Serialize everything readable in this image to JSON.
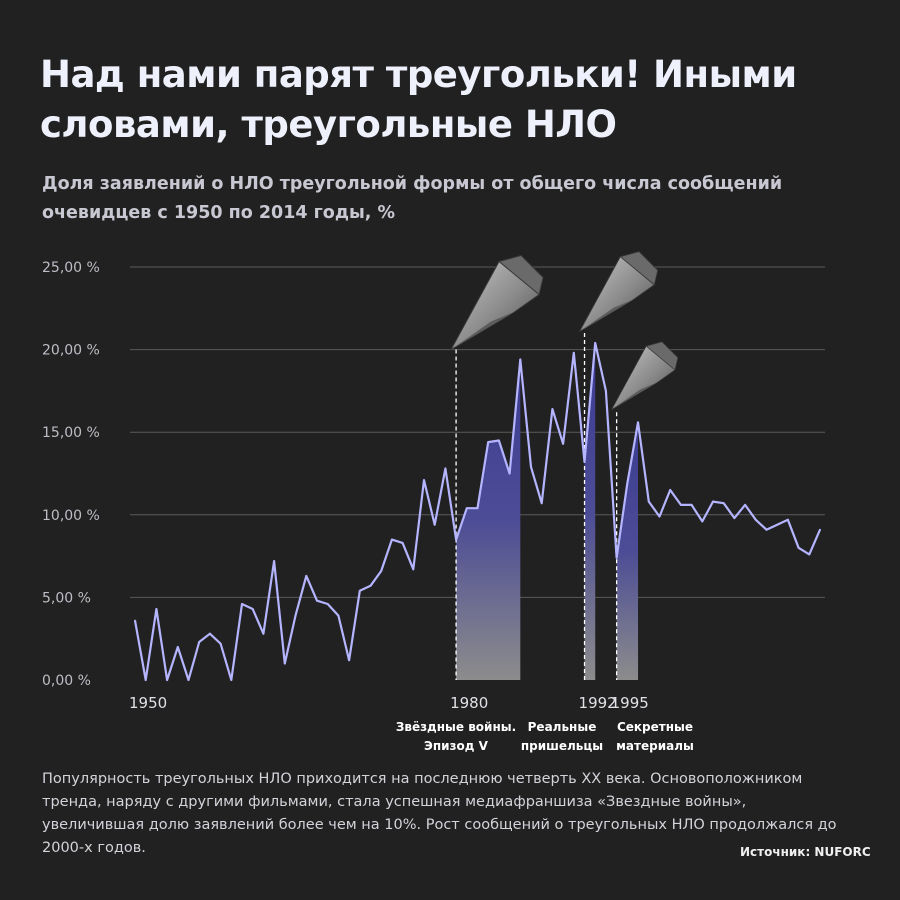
{
  "title": "Над нами парят треугольки! Иными словами, треугольные НЛО",
  "subtitle": "Доля заявлений о НЛО треугольной формы от общего числа сообщений очевидцев с 1950 по 2014 годы, %",
  "note": "Популярность треугольных НЛО приходится на последнюю четверть XX века. Основоположником тренда, наряду с другими фильмами, стала успешная медиафраншиза «Звездные войны», увеличившая долю заявлений более чем на 10%. Рост сообщений о треугольных НЛО продолжался до 2000-х годов.",
  "source": "Источник: NUFORC",
  "colors": {
    "line": "#b4b4ff",
    "highlight": "#3f3f94",
    "background": "#212121",
    "grid": "#5a5a5a"
  },
  "chart_data": {
    "type": "line",
    "title": "Доля заявлений о НЛО треугольной формы от общего числа сообщений очевидцев с 1950 по 2014 годы, %",
    "ylim": [
      0,
      25
    ],
    "yticks": [
      0,
      5,
      10,
      15,
      20,
      25
    ],
    "ytick_labels": [
      "0,00 %",
      "5,00 %",
      "10,00 %",
      "15,00 %",
      "20,00 %",
      "25,00 %"
    ],
    "x_start": 1950,
    "x_end": 2014,
    "xtick_labels": [
      {
        "year": 1950,
        "label": "1950"
      },
      {
        "year": 1980,
        "label": "1980"
      },
      {
        "year": 1992,
        "label": "1992"
      },
      {
        "year": 1995,
        "label": "1995"
      }
    ],
    "grid": true,
    "series": [
      {
        "x": [
          1950,
          1951,
          1952,
          1953,
          1954,
          1955,
          1956,
          1957,
          1958,
          1959,
          1960,
          1961,
          1962,
          1963,
          1964,
          1965,
          1966,
          1967,
          1968,
          1969,
          1970,
          1971,
          1972,
          1973,
          1974,
          1975,
          1976,
          1977,
          1978,
          1979,
          1980,
          1981,
          1982,
          1983,
          1984,
          1985,
          1986,
          1987,
          1988,
          1989,
          1990,
          1991,
          1992,
          1993,
          1994,
          1995,
          1996,
          1997,
          1998,
          1999,
          2000,
          2001,
          2002,
          2003,
          2004,
          2005,
          2006,
          2007,
          2008,
          2009,
          2010,
          2011,
          2012,
          2013,
          2014
        ],
        "values": [
          3.6,
          0.0,
          4.3,
          0.0,
          2.0,
          0.0,
          2.3,
          2.8,
          2.2,
          0.0,
          4.6,
          4.3,
          2.8,
          7.2,
          1.0,
          3.9,
          6.3,
          4.8,
          4.6,
          3.9,
          1.2,
          5.4,
          5.7,
          6.6,
          8.5,
          8.3,
          6.7,
          12.1,
          9.4,
          12.8,
          8.5,
          10.4,
          10.4,
          14.4,
          14.5,
          12.5,
          19.4,
          12.9,
          10.7,
          16.4,
          14.3,
          19.8,
          13.2,
          20.4,
          17.5,
          7.4,
          11.9,
          15.6,
          10.8,
          9.9,
          11.5,
          10.6,
          10.6,
          9.6,
          10.8,
          10.7,
          9.8,
          10.6,
          9.7,
          9.1,
          9.4,
          9.7,
          8.0,
          7.6,
          9.1
        ]
      }
    ],
    "highlights": [
      {
        "from": 1980,
        "to": 1986,
        "label": "Звёздные войны. Эпизод V",
        "label_lines": [
          "Звёздные войны.",
          "Эпизод V"
        ]
      },
      {
        "from": 1992,
        "to": 1993,
        "label": "Реальные пришельцы",
        "label_lines": [
          "Реальные",
          "пришельцы"
        ]
      },
      {
        "from": 1995,
        "to": 1997,
        "label": "Секретные материалы",
        "label_lines": [
          "Секретные",
          "материалы"
        ]
      }
    ]
  }
}
